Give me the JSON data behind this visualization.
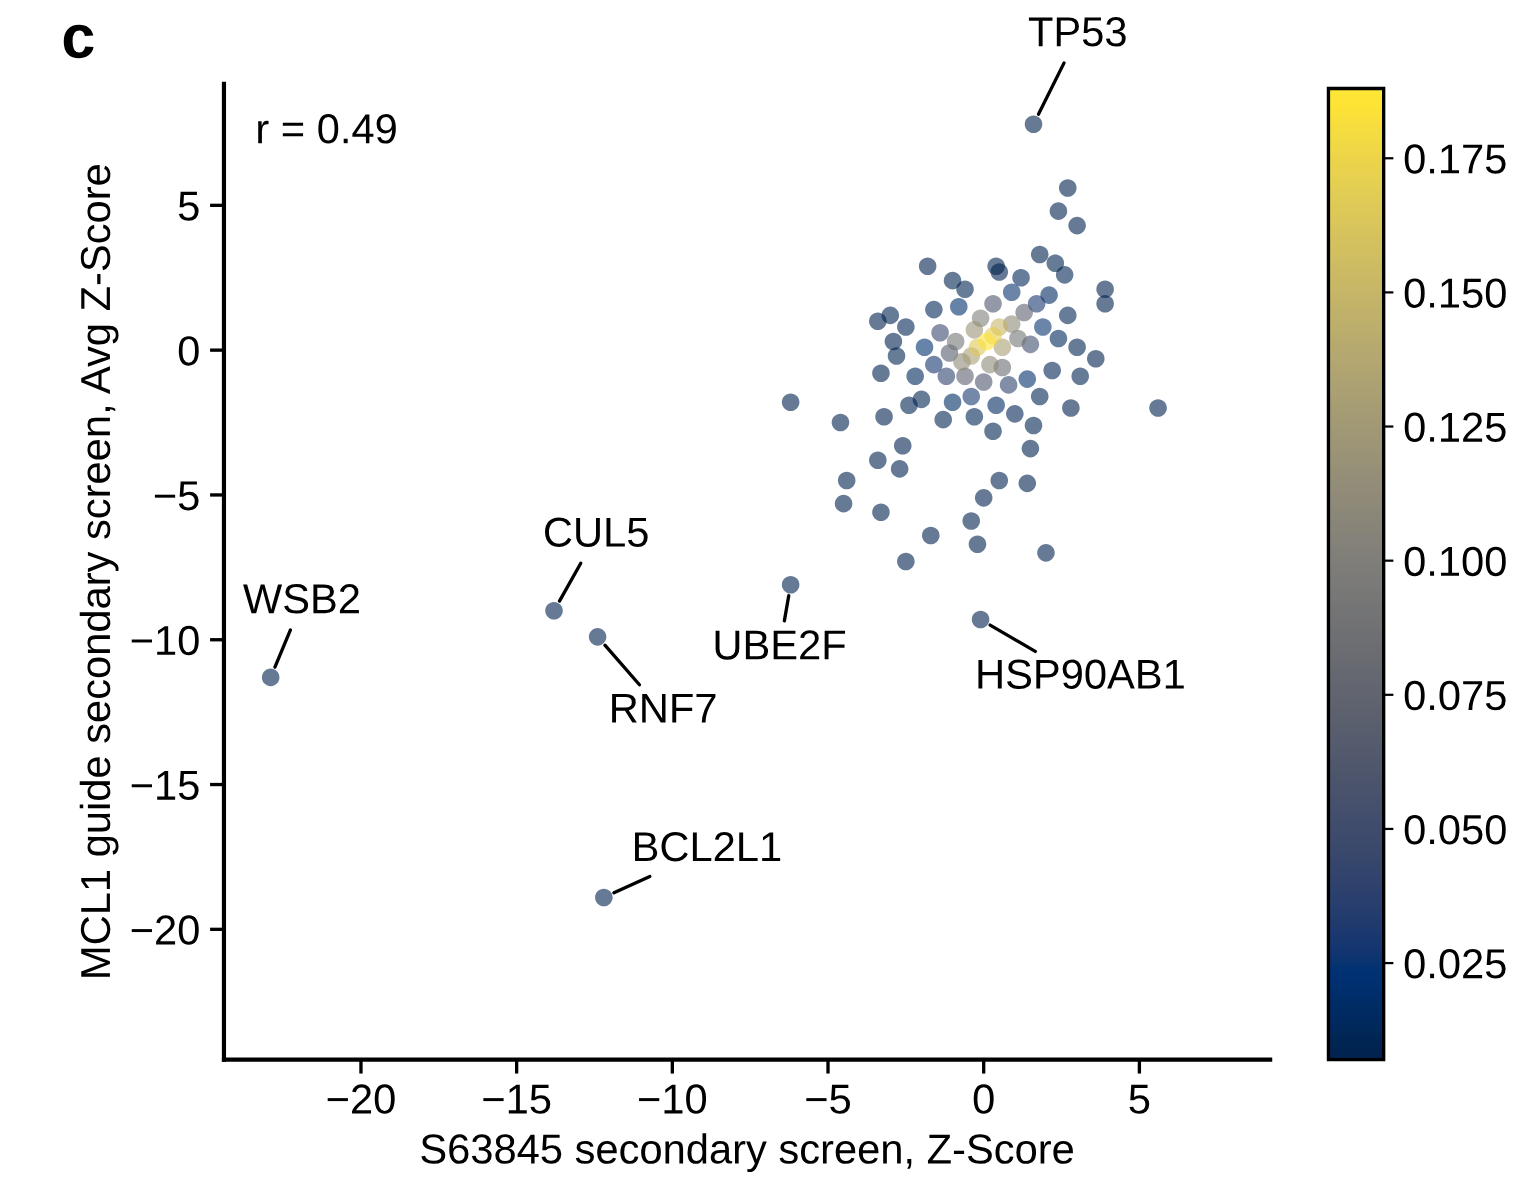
{
  "chart_data": {
    "type": "scatter",
    "title": "c",
    "xlabel": "S63845 secondary screen, Z-Score",
    "ylabel": "MCL1 guide secondary screen, Avg Z-Score",
    "xlim": [
      -24.4,
      9.2
    ],
    "ylim": [
      -24.5,
      9.2
    ],
    "xticks": [
      {
        "value": -20,
        "label": "−20"
      },
      {
        "value": -15,
        "label": "−15"
      },
      {
        "value": -10,
        "label": "−10"
      },
      {
        "value": -5,
        "label": "−5"
      },
      0,
      5
    ],
    "yticks": [
      {
        "value": -20,
        "label": "−20"
      },
      {
        "value": -15,
        "label": "−15"
      },
      {
        "value": -10,
        "label": "−10"
      },
      {
        "value": -5,
        "label": "−5"
      },
      0,
      5
    ],
    "grid": false,
    "marker": "circle",
    "clim": [
      0.007,
      0.188
    ],
    "cticks": [
      0.025,
      {
        "value": 0.05,
        "label": "0.050"
      },
      0.075,
      {
        "value": 0.1,
        "label": "0.100"
      },
      0.125,
      {
        "value": 0.15,
        "label": "0.150"
      },
      0.175
    ],
    "annotations": [
      "r = 0.49",
      {
        "text": "TP53",
        "x": 1.6,
        "y": 7.8
      },
      {
        "text": "WSB2",
        "x": -22.9,
        "y": -11.3
      },
      {
        "text": "CUL5",
        "x": -13.8,
        "y": -9.0
      },
      {
        "text": "RNF7",
        "x": -12.4,
        "y": -9.9
      },
      {
        "text": "UBE2F",
        "x": -6.2,
        "y": -8.1
      },
      {
        "text": "HSP90AB1",
        "x": -0.1,
        "y": -9.3
      },
      {
        "text": "BCL2L1",
        "x": -12.2,
        "y": -18.9
      }
    ],
    "x": [
      1.6,
      -22.9,
      -13.8,
      -12.4,
      -6.2,
      -0.1,
      -12.2,
      2.7,
      2.4,
      3.0,
      5.6,
      -4.6,
      -4.4,
      -4.5,
      -3.3,
      -3.4,
      -2.7,
      -2.6,
      -1.7,
      -2.5,
      -0.4,
      -0.2,
      2.0,
      0.0,
      0.5,
      1.4,
      1.5,
      -6.2,
      -1.8,
      -3.4,
      3.9,
      3.9,
      3.6,
      2.8,
      -3.2,
      -3.3,
      -2.9,
      0.5,
      1.8,
      3.1,
      0.3,
      -2.4,
      1.6,
      -3.0,
      2.3,
      -1.0,
      3.0,
      0.4,
      -1.3,
      1.8,
      -2.8,
      2.6,
      -0.6,
      -2.0,
      2.7,
      1.0,
      -2.5,
      2.2,
      -0.3,
      1.2,
      -1.6,
      2.4,
      -2.2,
      0.4,
      2.1,
      -1.0,
      1.4,
      -0.8,
      -1.9,
      1.9,
      0.9,
      -1.6,
      -0.4,
      1.7,
      0.8,
      -1.2,
      -1.4,
      1.5,
      0.3,
      0.0,
      -1.1,
      1.3,
      -0.6,
      0.6,
      -0.9,
      1.1,
      -0.1,
      0.2,
      -0.7,
      0.9,
      -0.3,
      0.6,
      -0.4,
      0.5,
      -0.2,
      0.3,
      0.1
    ],
    "values": [
      7.8,
      -11.3,
      -9.0,
      -9.9,
      -8.1,
      -9.3,
      -18.9,
      5.6,
      4.8,
      4.3,
      -2.0,
      -2.5,
      -4.5,
      -5.3,
      -5.6,
      -3.8,
      -4.1,
      -3.3,
      -6.4,
      -7.3,
      -5.9,
      -6.7,
      -7.0,
      -5.1,
      -4.5,
      -4.6,
      -3.4,
      -1.8,
      2.9,
      1.0,
      2.1,
      1.6,
      -0.3,
      -2.0,
      -2.3,
      -0.8,
      0.3,
      2.7,
      3.3,
      -0.9,
      -2.8,
      -1.9,
      -2.6,
      1.2,
      3.0,
      2.4,
      0.1,
      2.9,
      -2.4,
      -1.6,
      -0.2,
      2.6,
      2.1,
      -1.7,
      1.2,
      -2.2,
      0.8,
      -0.7,
      -2.3,
      2.5,
      1.4,
      0.4,
      -0.9,
      -1.9,
      1.9,
      -1.8,
      -1.0,
      1.5,
      0.1,
      0.8,
      2.0,
      -0.5,
      -1.6,
      1.6,
      -1.2,
      -0.9,
      0.6,
      0.2,
      1.6,
      -1.1,
      -0.1,
      1.3,
      -0.9,
      -0.6,
      0.3,
      0.4,
      1.1,
      -0.5,
      -0.4,
      0.9,
      0.7,
      0.1,
      -0.2,
      0.8,
      0.1,
      0.5,
      0.3
    ],
    "cvalues": [
      0.007,
      0.007,
      0.007,
      0.007,
      0.007,
      0.007,
      0.007,
      0.007,
      0.007,
      0.007,
      0.007,
      0.007,
      0.007,
      0.007,
      0.007,
      0.007,
      0.007,
      0.007,
      0.007,
      0.007,
      0.007,
      0.007,
      0.007,
      0.007,
      0.007,
      0.007,
      0.007,
      0.007,
      0.007,
      0.007,
      0.007,
      0.007,
      0.007,
      0.007,
      0.007,
      0.007,
      0.007,
      0.007,
      0.007,
      0.008,
      0.008,
      0.008,
      0.008,
      0.008,
      0.008,
      0.008,
      0.008,
      0.008,
      0.009,
      0.009,
      0.009,
      0.009,
      0.009,
      0.009,
      0.01,
      0.01,
      0.01,
      0.01,
      0.011,
      0.012,
      0.012,
      0.013,
      0.013,
      0.015,
      0.015,
      0.016,
      0.02,
      0.02,
      0.022,
      0.025,
      0.025,
      0.028,
      0.03,
      0.03,
      0.04,
      0.04,
      0.045,
      0.05,
      0.06,
      0.06,
      0.065,
      0.07,
      0.07,
      0.08,
      0.09,
      0.09,
      0.1,
      0.11,
      0.11,
      0.11,
      0.12,
      0.13,
      0.13,
      0.15,
      0.165,
      0.17,
      0.185
    ]
  }
}
